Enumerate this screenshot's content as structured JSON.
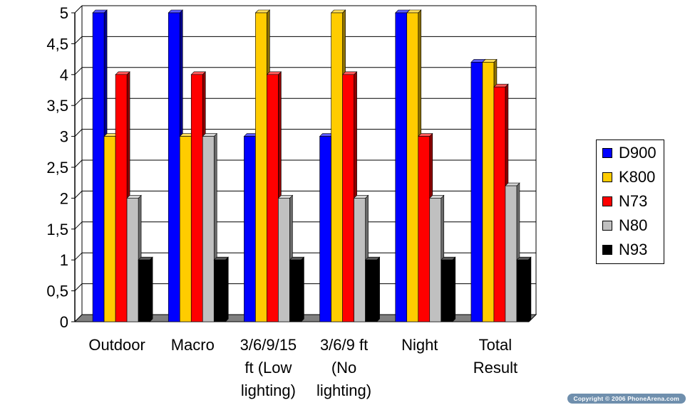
{
  "chart_data": {
    "type": "bar",
    "title": "",
    "xlabel": "",
    "ylabel": "",
    "ylim": [
      0,
      5
    ],
    "y_ticks": [
      "0",
      "0,5",
      "1",
      "1,5",
      "2",
      "2,5",
      "3",
      "3,5",
      "4",
      "4,5",
      "5"
    ],
    "categories": [
      [
        "Outdoor"
      ],
      [
        "Macro"
      ],
      [
        "3/6/9/15",
        "ft (Low",
        "lighting)"
      ],
      [
        "3/6/9 ft",
        "(No",
        "lighting)"
      ],
      [
        "Night"
      ],
      [
        "Total",
        "Result"
      ]
    ],
    "series": [
      {
        "name": "D900",
        "color": "#0000ff",
        "values": [
          5,
          5,
          3,
          3,
          5,
          4.2
        ]
      },
      {
        "name": "K800",
        "color": "#ffcc00",
        "values": [
          3,
          3,
          5,
          5,
          5,
          4.2
        ]
      },
      {
        "name": "N73",
        "color": "#ff0000",
        "values": [
          4,
          4,
          4,
          4,
          3,
          3.8
        ]
      },
      {
        "name": "N80",
        "color": "#c0c0c0",
        "values": [
          2,
          3,
          2,
          2,
          2,
          2.2
        ]
      },
      {
        "name": "N93",
        "color": "#000000",
        "values": [
          1,
          1,
          1,
          1,
          1,
          1
        ]
      }
    ],
    "grid": true,
    "legend_position": "right"
  },
  "credit": "Copyright © 2006 PhoneArena.com"
}
